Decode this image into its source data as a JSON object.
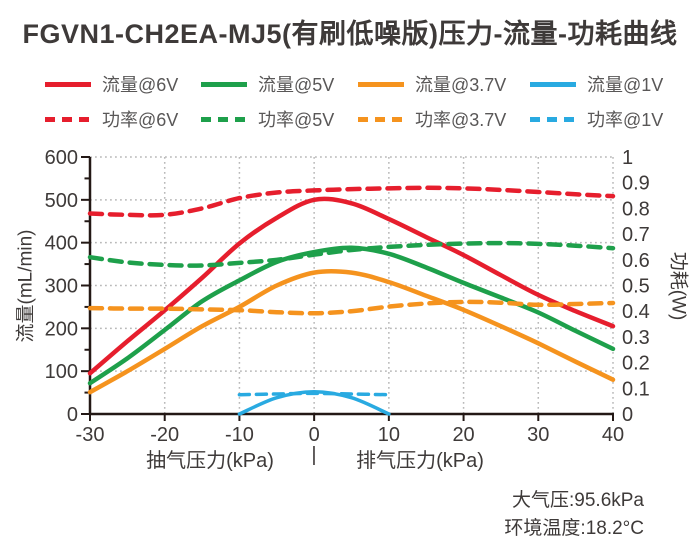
{
  "chart_data": {
    "type": "line",
    "title": "FGVN1-CH2EA-MJ5(有刷低噪版)压力-流量-功耗曲线",
    "x_axis": {
      "label_suction": "抽气压力(kPa)",
      "separator": "|",
      "label_exhaust": "排气压力(kPa)",
      "range": [
        -30,
        40
      ],
      "tick_step": 10,
      "ticks": [
        -30,
        -20,
        -10,
        0,
        10,
        20,
        30,
        40
      ]
    },
    "y_left": {
      "label": "流量(mL/min)",
      "range": [
        0,
        600
      ],
      "tick_step": 100,
      "minor_tick_step": 50,
      "ticks": [
        0,
        100,
        200,
        300,
        400,
        500,
        600
      ]
    },
    "y_right": {
      "label": "功耗(W)",
      "range": [
        0,
        1
      ],
      "tick_step": 0.1,
      "ticks": [
        0,
        0.1,
        0.2,
        0.3,
        0.4,
        0.5,
        0.6,
        0.7,
        0.8,
        0.9,
        1
      ]
    },
    "grid": "dotted",
    "legend_position": "top",
    "series": [
      {
        "name": "流量@6V",
        "axis": "left",
        "line": "solid",
        "color": "#e61e2d",
        "points": [
          [
            -30,
            95
          ],
          [
            -25,
            170
          ],
          [
            -20,
            242
          ],
          [
            -15,
            318
          ],
          [
            -10,
            398
          ],
          [
            -5,
            458
          ],
          [
            0,
            500
          ],
          [
            5,
            492
          ],
          [
            10,
            455
          ],
          [
            15,
            413
          ],
          [
            20,
            371
          ],
          [
            25,
            324
          ],
          [
            30,
            278
          ],
          [
            35,
            240
          ],
          [
            40,
            205
          ]
        ]
      },
      {
        "name": "流量@5V",
        "axis": "left",
        "line": "solid",
        "color": "#1ea04b",
        "points": [
          [
            -30,
            72
          ],
          [
            -25,
            130
          ],
          [
            -20,
            196
          ],
          [
            -15,
            263
          ],
          [
            -10,
            312
          ],
          [
            -5,
            355
          ],
          [
            0,
            378
          ],
          [
            5,
            388
          ],
          [
            10,
            374
          ],
          [
            15,
            342
          ],
          [
            20,
            306
          ],
          [
            25,
            272
          ],
          [
            30,
            237
          ],
          [
            35,
            194
          ],
          [
            40,
            152
          ]
        ]
      },
      {
        "name": "流量@3.7V",
        "axis": "left",
        "line": "solid",
        "color": "#f5931e",
        "points": [
          [
            -30,
            51
          ],
          [
            -25,
            100
          ],
          [
            -20,
            152
          ],
          [
            -15,
            205
          ],
          [
            -10,
            250
          ],
          [
            -5,
            300
          ],
          [
            0,
            330
          ],
          [
            5,
            330
          ],
          [
            10,
            308
          ],
          [
            15,
            276
          ],
          [
            20,
            243
          ],
          [
            25,
            205
          ],
          [
            30,
            165
          ],
          [
            35,
            122
          ],
          [
            40,
            80
          ]
        ]
      },
      {
        "name": "流量@1V",
        "axis": "left",
        "line": "solid",
        "color": "#29aae1",
        "points": [
          [
            -10,
            0
          ],
          [
            -5,
            38
          ],
          [
            0,
            52
          ],
          [
            5,
            38
          ],
          [
            10,
            0
          ]
        ]
      },
      {
        "name": "功率@6V",
        "axis": "right",
        "line": "dashed",
        "color": "#e61e2d",
        "points": [
          [
            -30,
            0.78
          ],
          [
            -25,
            0.775
          ],
          [
            -20,
            0.775
          ],
          [
            -15,
            0.8
          ],
          [
            -10,
            0.84
          ],
          [
            -5,
            0.862
          ],
          [
            0,
            0.87
          ],
          [
            5,
            0.875
          ],
          [
            10,
            0.878
          ],
          [
            15,
            0.88
          ],
          [
            20,
            0.878
          ],
          [
            25,
            0.872
          ],
          [
            30,
            0.864
          ],
          [
            35,
            0.855
          ],
          [
            40,
            0.848
          ]
        ]
      },
      {
        "name": "功率@5V",
        "axis": "right",
        "line": "dashed",
        "color": "#1ea04b",
        "points": [
          [
            -30,
            0.61
          ],
          [
            -25,
            0.59
          ],
          [
            -20,
            0.58
          ],
          [
            -15,
            0.578
          ],
          [
            -10,
            0.588
          ],
          [
            -5,
            0.6
          ],
          [
            0,
            0.62
          ],
          [
            5,
            0.638
          ],
          [
            10,
            0.65
          ],
          [
            15,
            0.658
          ],
          [
            20,
            0.663
          ],
          [
            25,
            0.665
          ],
          [
            30,
            0.662
          ],
          [
            35,
            0.655
          ],
          [
            40,
            0.645
          ]
        ]
      },
      {
        "name": "功率@3.7V",
        "axis": "right",
        "line": "dashed",
        "color": "#f5931e",
        "points": [
          [
            -30,
            0.412
          ],
          [
            -25,
            0.41
          ],
          [
            -20,
            0.41
          ],
          [
            -15,
            0.407
          ],
          [
            -10,
            0.404
          ],
          [
            -5,
            0.396
          ],
          [
            0,
            0.392
          ],
          [
            5,
            0.4
          ],
          [
            10,
            0.418
          ],
          [
            15,
            0.43
          ],
          [
            20,
            0.436
          ],
          [
            25,
            0.433
          ],
          [
            30,
            0.425
          ],
          [
            35,
            0.428
          ],
          [
            40,
            0.432
          ]
        ]
      },
      {
        "name": "功率@1V",
        "axis": "right",
        "line": "dashed",
        "color": "#29aae1",
        "points": [
          [
            -10,
            0.075
          ],
          [
            -5,
            0.078
          ],
          [
            0,
            0.08
          ],
          [
            5,
            0.078
          ],
          [
            10,
            0.075
          ]
        ]
      }
    ],
    "annotations": [
      "大气压:95.6kPa",
      "环境温度:18.2°C"
    ]
  },
  "colors": {
    "red": "#e61e2d",
    "green": "#1ea04b",
    "orange": "#f5931e",
    "blue": "#29aae1",
    "grid": "#b9b9b9",
    "axis": "#231815",
    "text": "#3e3a39",
    "legend_text": "#595757"
  }
}
